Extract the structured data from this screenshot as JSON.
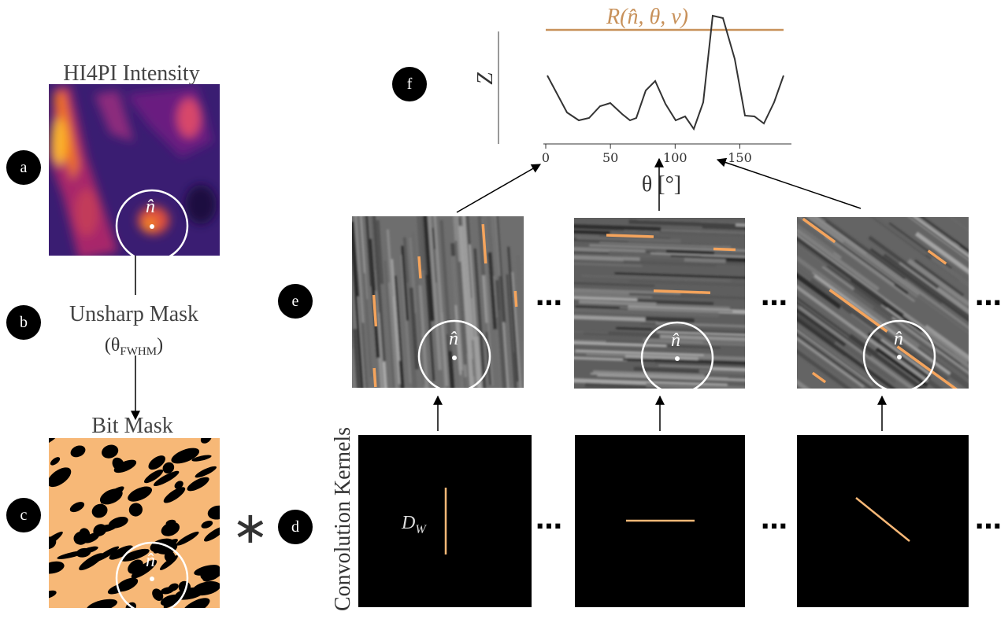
{
  "labels": [
    "a",
    "b",
    "c",
    "d",
    "e",
    "f"
  ],
  "titles": {
    "intensity": "HI4PI Intensity",
    "unsharp": "Unsharp Mask",
    "unsharp_param": {
      "open": "(θ",
      "sub": "FWHM",
      "close": ")"
    },
    "bitmask": "Bit Mask",
    "kernels": "Convolution Kernels"
  },
  "kernel_length": {
    "symbol": "D",
    "sub": "W"
  },
  "n_hat": "n̂",
  "convolution": "∗",
  "ellipsis": "…",
  "chart": {
    "threshold_label": "R(n̂, θ, v)",
    "y_label": "Z",
    "x_label": "θ [°]",
    "xlim": [
      0,
      185
    ],
    "xticks": [
      0,
      50,
      100,
      150
    ]
  }
}
